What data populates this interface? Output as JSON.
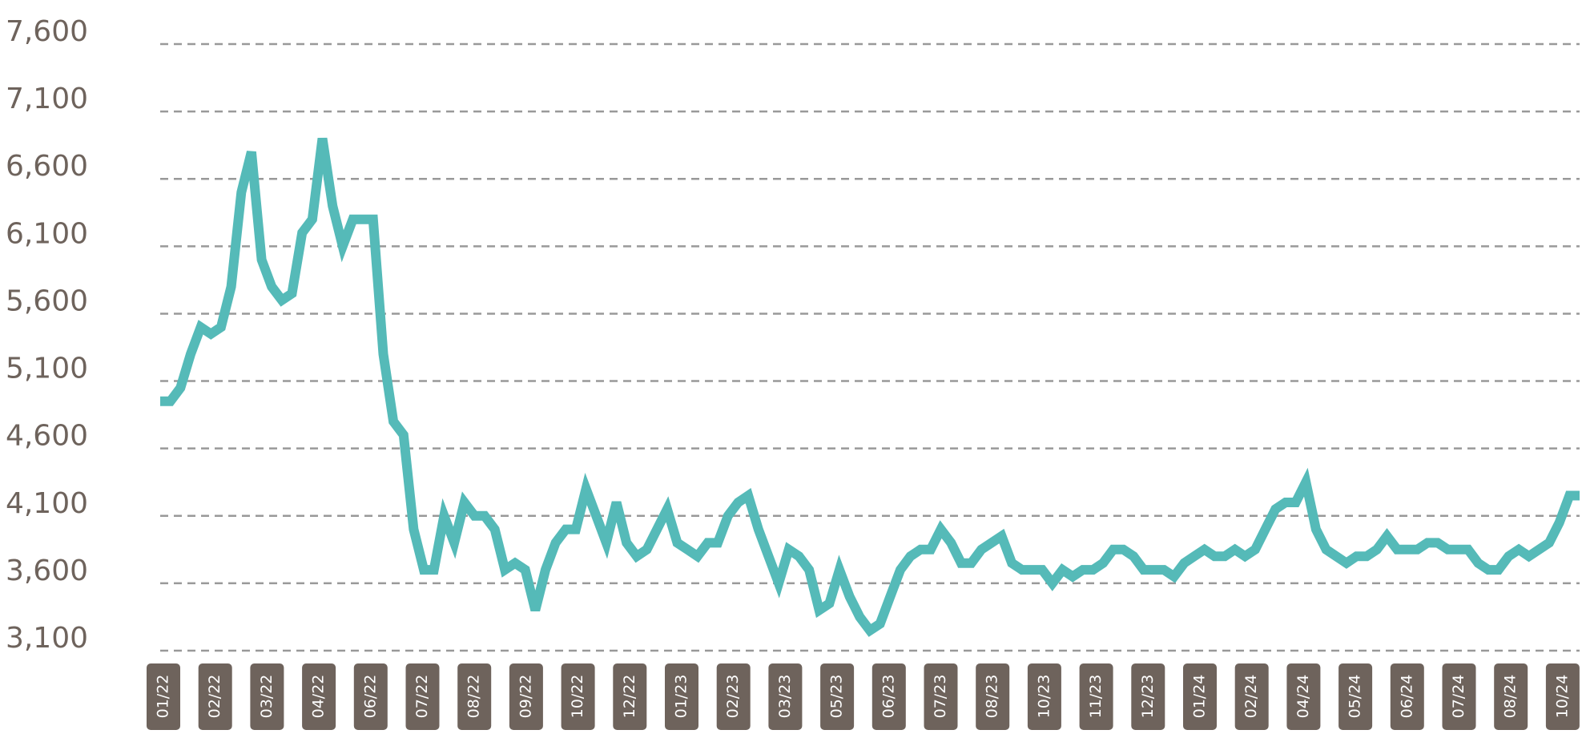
{
  "chart_data": {
    "type": "line",
    "color": "#55bab8",
    "grid": true,
    "ylim": [
      3100,
      7600
    ],
    "yticks": [
      {
        "value": 3100,
        "label": "3,100"
      },
      {
        "value": 3600,
        "label": "3,600"
      },
      {
        "value": 4100,
        "label": "4,100"
      },
      {
        "value": 4600,
        "label": "4,600"
      },
      {
        "value": 5100,
        "label": "5,100"
      },
      {
        "value": 5600,
        "label": "5,600"
      },
      {
        "value": 6100,
        "label": "6,100"
      },
      {
        "value": 6600,
        "label": "6,600"
      },
      {
        "value": 7100,
        "label": "7,100"
      },
      {
        "value": 7600,
        "label": "7,600"
      }
    ],
    "xtick_labels": [
      "01/22",
      "02/22",
      "03/22",
      "04/22",
      "06/22",
      "07/22",
      "08/22",
      "09/22",
      "10/22",
      "12/22",
      "01/23",
      "02/23",
      "03/23",
      "05/23",
      "06/23",
      "07/23",
      "08/23",
      "10/23",
      "11/23",
      "12/23",
      "01/24",
      "02/24",
      "04/24",
      "05/24",
      "06/24",
      "07/24",
      "08/24",
      "10/24"
    ],
    "values": [
      4950,
      4950,
      5050,
      5300,
      5500,
      5450,
      5500,
      5800,
      6500,
      6800,
      6000,
      5800,
      5700,
      5750,
      6200,
      6300,
      6900,
      6400,
      6100,
      6300,
      6300,
      6300,
      5300,
      4800,
      4700,
      4000,
      3700,
      3700,
      4100,
      3900,
      4200,
      4100,
      4100,
      4000,
      3700,
      3750,
      3700,
      3400,
      3700,
      3900,
      4000,
      4000,
      4300,
      4100,
      3900,
      4200,
      3900,
      3800,
      3850,
      4000,
      4150,
      3900,
      3850,
      3800,
      3900,
      3900,
      4100,
      4200,
      4250,
      4000,
      3800,
      3600,
      3850,
      3800,
      3700,
      3400,
      3450,
      3700,
      3500,
      3350,
      3250,
      3300,
      3500,
      3700,
      3800,
      3850,
      3850,
      4000,
      3900,
      3750,
      3750,
      3850,
      3900,
      3950,
      3750,
      3700,
      3700,
      3700,
      3600,
      3700,
      3650,
      3700,
      3700,
      3750,
      3850,
      3850,
      3800,
      3700,
      3700,
      3700,
      3650,
      3750,
      3800,
      3850,
      3800,
      3800,
      3850,
      3800,
      3850,
      4000,
      4150,
      4200,
      4200,
      4350,
      4000,
      3850,
      3800,
      3750,
      3800,
      3800,
      3850,
      3950,
      3850,
      3850,
      3850,
      3900,
      3900,
      3850,
      3850,
      3850,
      3750,
      3700,
      3700,
      3800,
      3850,
      3800,
      3850,
      3900,
      4050,
      4250,
      4250
    ]
  }
}
